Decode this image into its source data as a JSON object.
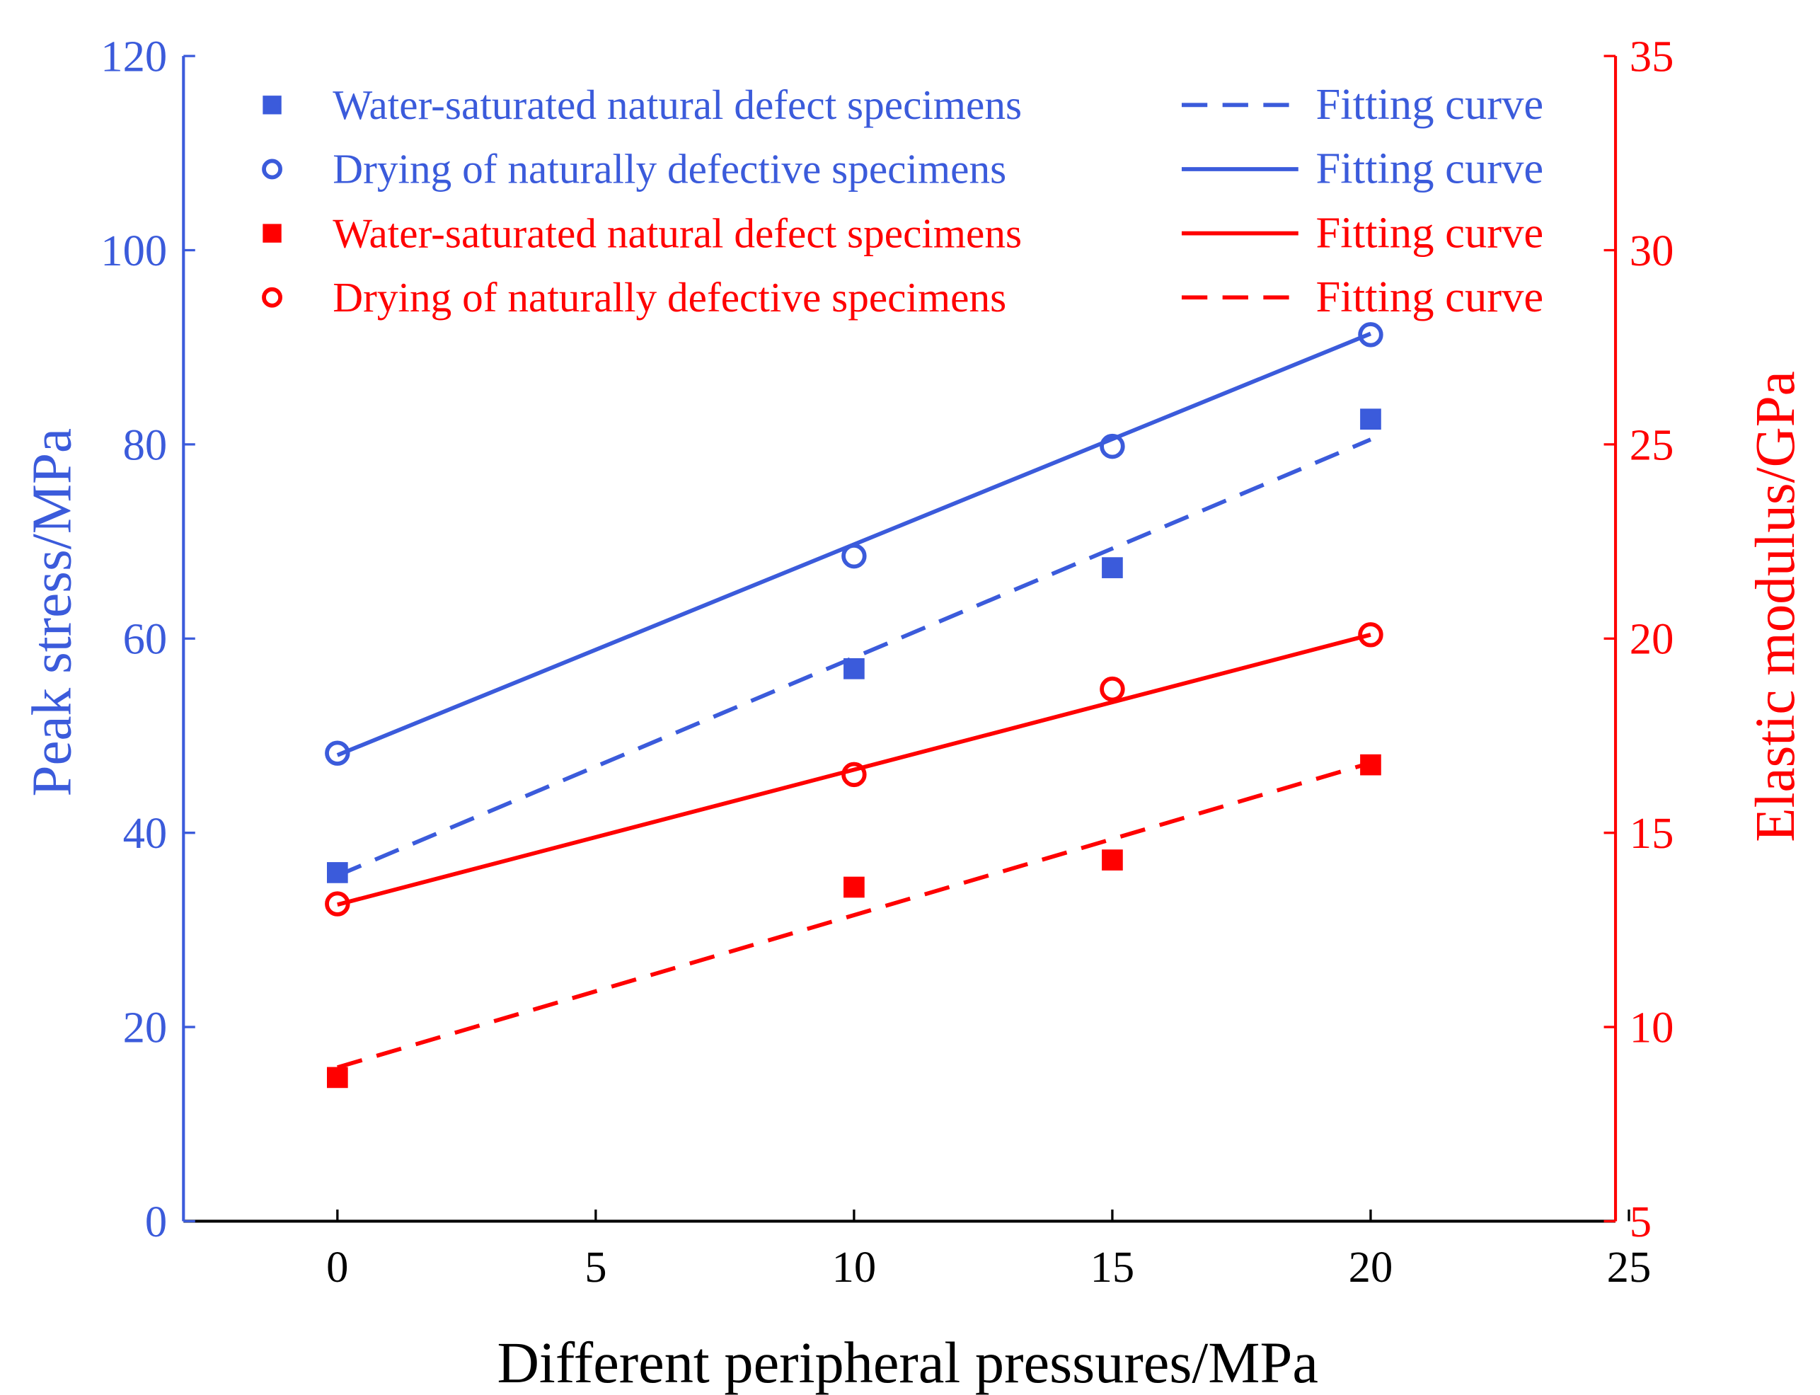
{
  "chart_data": {
    "type": "line",
    "xlabel": "Different peripheral pressures/MPa",
    "ylabel": "Peak stress/MPa",
    "y2label": "Elastic modulus/GPa",
    "xlim": [
      -3,
      25
    ],
    "ylim": [
      0,
      120
    ],
    "y2lim": [
      5,
      35
    ],
    "xticks": [
      0,
      5,
      10,
      15,
      20,
      25
    ],
    "yticks": [
      0,
      20,
      40,
      60,
      80,
      100,
      120
    ],
    "y2ticks": [
      5,
      10,
      15,
      20,
      25,
      30,
      35
    ],
    "grid": false,
    "legend_position": "top",
    "colors": {
      "blue": "#3b5bdb",
      "red": "#ff0000"
    },
    "series": [
      {
        "name": "Water-saturated natural defect specimens",
        "axis": "left",
        "color": "#3b5bdb",
        "marker": "square",
        "x": [
          0,
          10,
          15,
          20
        ],
        "y": [
          35.9,
          56.9,
          67.3,
          82.6
        ],
        "fit_label": "Fitting curve",
        "fit_style": "dashed",
        "fit_x": [
          0,
          20
        ],
        "fit_y": [
          35.6,
          80.5
        ]
      },
      {
        "name": "Drying of naturally defective specimens",
        "axis": "left",
        "color": "#3b5bdb",
        "marker": "circle",
        "x": [
          0,
          10,
          15,
          20
        ],
        "y": [
          48.2,
          68.5,
          79.8,
          91.3
        ],
        "fit_label": "Fitting curve",
        "fit_style": "solid",
        "fit_x": [
          0,
          20
        ],
        "fit_y": [
          48.0,
          91.4
        ]
      },
      {
        "name": "Water-saturated natural defect specimens",
        "axis": "right",
        "color": "#ff0000",
        "marker": "square",
        "x": [
          0,
          10,
          15,
          20
        ],
        "y": [
          8.7,
          13.6,
          14.3,
          16.75
        ],
        "fit_label": "Fitting curve",
        "fit_style": "solid",
        "fit_x": [
          0,
          20
        ],
        "fit_y": [
          13.15,
          20.1
        ]
      },
      {
        "name": "Drying of naturally defective specimens",
        "axis": "right",
        "color": "#ff0000",
        "marker": "circle",
        "x": [
          0,
          10,
          15,
          20
        ],
        "y": [
          13.17,
          16.5,
          18.7,
          20.1
        ],
        "fit_label": "Fitting curve",
        "fit_style": "dashed",
        "fit_x": [
          0,
          20
        ],
        "fit_y": [
          8.96,
          16.8
        ]
      }
    ]
  }
}
